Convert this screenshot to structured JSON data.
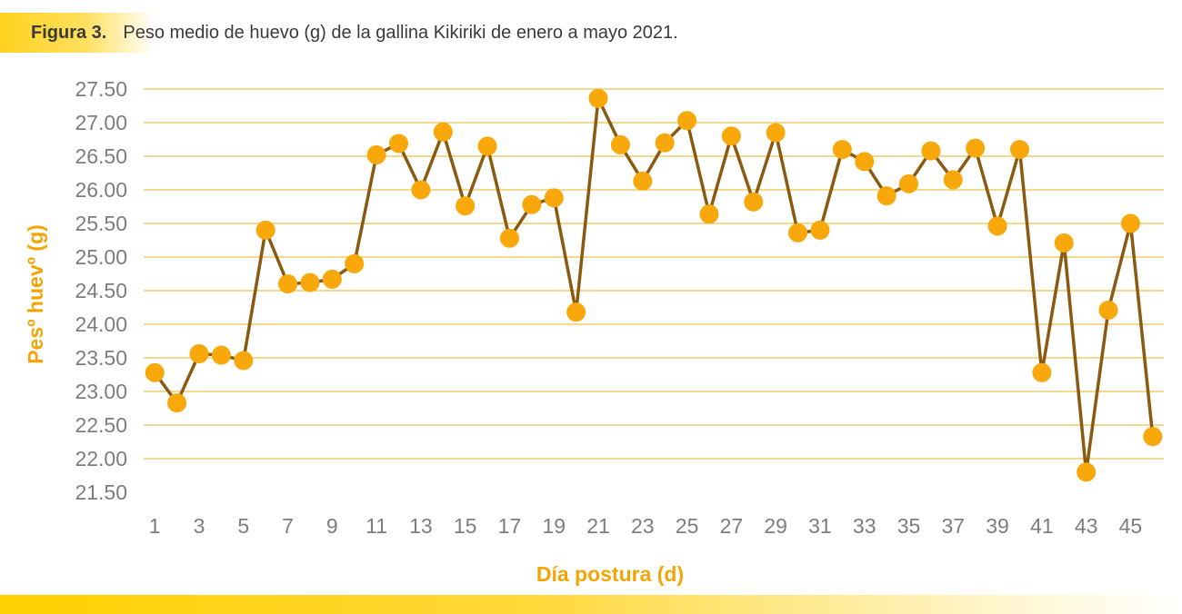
{
  "caption": {
    "label": "Figura 3.",
    "text": "Peso medio de huevo (g) de la gallina Kikiriki de enero a mayo 2021."
  },
  "colors": {
    "line": "#8a5a10",
    "marker": "#f8a80b",
    "grid": "#e7b31c",
    "axis_title": "#f5a406",
    "tick": "#7d7d7d"
  },
  "chart_data": {
    "type": "line",
    "title": "Peso medio de huevo (g) de la gallina Kikiriki de enero a mayo 2021.",
    "xlabel": "Día postura (d)",
    "ylabel": "Pesº huevº (g)",
    "ylim": [
      21.5,
      27.5
    ],
    "yticks": [
      "21.50",
      "22.00",
      "22.50",
      "23.00",
      "23.50",
      "24.00",
      "24.50",
      "25.00",
      "25.50",
      "26.00",
      "26.50",
      "27.00",
      "27.50"
    ],
    "x": [
      1,
      2,
      3,
      4,
      5,
      6,
      7,
      8,
      9,
      10,
      11,
      12,
      13,
      14,
      15,
      16,
      17,
      18,
      19,
      20,
      21,
      22,
      23,
      24,
      25,
      26,
      27,
      28,
      29,
      30,
      31,
      32,
      33,
      34,
      35,
      36,
      37,
      38,
      39,
      40,
      41,
      42,
      43,
      44,
      45,
      46
    ],
    "xticks": [
      "1",
      "3",
      "5",
      "7",
      "9",
      "11",
      "13",
      "15",
      "17",
      "19",
      "21",
      "23",
      "25",
      "27",
      "29",
      "31",
      "33",
      "35",
      "37",
      "39",
      "41",
      "43",
      "45"
    ],
    "series": [
      {
        "name": "Peso huevo",
        "values": [
          23.28,
          22.83,
          23.56,
          23.54,
          23.46,
          25.4,
          24.6,
          24.62,
          24.67,
          24.9,
          26.52,
          26.69,
          26.0,
          26.86,
          25.76,
          26.65,
          25.28,
          25.78,
          25.88,
          24.18,
          27.36,
          26.67,
          26.13,
          26.7,
          27.03,
          25.64,
          26.8,
          25.82,
          26.85,
          25.36,
          25.4,
          26.6,
          26.42,
          25.91,
          26.09,
          26.58,
          26.15,
          26.62,
          25.46,
          26.6,
          23.28,
          25.21,
          21.8,
          24.21,
          25.5,
          22.33
        ]
      }
    ]
  }
}
